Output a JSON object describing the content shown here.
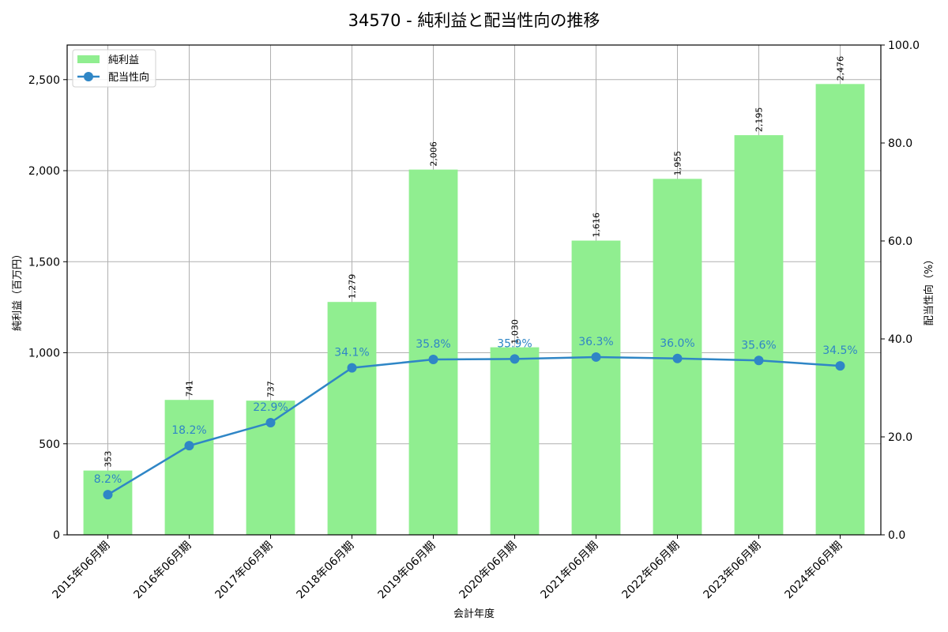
{
  "chart_data": {
    "type": "bar",
    "title": "34570 - 純利益と配当性向の推移",
    "xlabel": "会計年度",
    "ylabel": "純利益（百万円）",
    "y2label": "配当性向（%）",
    "categories": [
      "2015年06月期",
      "2016年06月期",
      "2017年06月期",
      "2018年06月期",
      "2019年06月期",
      "2020年06月期",
      "2021年06月期",
      "2022年06月期",
      "2023年06月期",
      "2024年06月期"
    ],
    "series": [
      {
        "name": "純利益",
        "type": "bar",
        "axis": "left",
        "color": "#90ee90",
        "values": [
          353,
          741,
          737,
          1279,
          2006,
          1030,
          1616,
          1955,
          2195,
          2476
        ],
        "labels": [
          "353",
          "741",
          "737",
          "1,279",
          "2,006",
          "1,030",
          "1,616",
          "1,955",
          "2,195",
          "2,476"
        ]
      },
      {
        "name": "配当性向",
        "type": "line",
        "axis": "right",
        "color": "#2f86c6",
        "values": [
          8.2,
          18.2,
          22.9,
          34.1,
          35.8,
          35.9,
          36.3,
          36.0,
          35.6,
          34.5
        ],
        "labels": [
          "8.2%",
          "18.2%",
          "22.9%",
          "34.1%",
          "35.8%",
          "35.9%",
          "36.3%",
          "36.0%",
          "35.6%",
          "34.5%"
        ]
      }
    ],
    "ylim": [
      0,
      2690
    ],
    "y2lim": [
      0,
      100
    ],
    "yticks": [
      0,
      500,
      1000,
      1500,
      2000,
      2500
    ],
    "ytick_labels": [
      "0",
      "500",
      "1,000",
      "1,500",
      "2,000",
      "2,500"
    ],
    "y2ticks": [
      0,
      20,
      40,
      60,
      80,
      100
    ],
    "y2tick_labels": [
      "0.0",
      "20.0",
      "40.0",
      "60.0",
      "80.0",
      "100.0"
    ],
    "grid": true,
    "legend_position": "upper left",
    "legend": [
      "純利益",
      "配当性向"
    ]
  }
}
